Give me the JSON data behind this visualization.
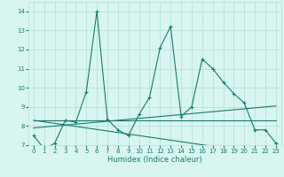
{
  "xlabel": "Humidex (Indice chaleur)",
  "x_values": [
    0,
    1,
    2,
    3,
    4,
    5,
    6,
    7,
    8,
    9,
    10,
    11,
    12,
    13,
    14,
    15,
    16,
    17,
    18,
    19,
    20,
    21,
    22,
    23
  ],
  "line1": [
    7.5,
    6.8,
    7.1,
    8.3,
    8.2,
    9.8,
    14.0,
    8.35,
    7.8,
    7.5,
    8.6,
    9.5,
    12.1,
    13.2,
    8.5,
    9.0,
    11.5,
    11.0,
    10.3,
    9.7,
    9.2,
    7.8,
    7.8,
    7.1
  ],
  "line2": [
    8.3,
    8.3,
    8.3,
    8.3,
    8.3,
    8.3,
    8.3,
    8.3,
    8.3,
    8.3,
    8.3,
    8.3,
    8.3,
    8.3,
    8.3,
    8.3,
    8.3,
    8.3,
    8.3,
    8.3,
    8.3,
    8.3,
    8.3,
    8.3
  ],
  "line3": [
    8.3,
    8.22,
    8.14,
    8.06,
    7.98,
    7.9,
    7.82,
    7.74,
    7.66,
    7.58,
    7.5,
    7.42,
    7.34,
    7.26,
    7.18,
    7.1,
    7.02,
    6.94,
    6.86,
    6.78,
    6.7,
    6.62,
    6.54,
    6.46
  ],
  "line4": [
    7.9,
    7.95,
    8.0,
    8.05,
    8.1,
    8.15,
    8.2,
    8.25,
    8.3,
    8.35,
    8.4,
    8.45,
    8.5,
    8.55,
    8.6,
    8.65,
    8.7,
    8.75,
    8.8,
    8.85,
    8.9,
    8.95,
    9.0,
    9.05
  ],
  "line_color": "#1a7a6e",
  "bg_color": "#d8f5f0",
  "grid_color": "#b0ddd8",
  "ylim": [
    7,
    14.5
  ],
  "xlim": [
    -0.5,
    23.5
  ],
  "yticks": [
    7,
    8,
    9,
    10,
    11,
    12,
    13,
    14
  ],
  "xticks": [
    0,
    1,
    2,
    3,
    4,
    5,
    6,
    7,
    8,
    9,
    10,
    11,
    12,
    13,
    14,
    15,
    16,
    17,
    18,
    19,
    20,
    21,
    22,
    23
  ]
}
